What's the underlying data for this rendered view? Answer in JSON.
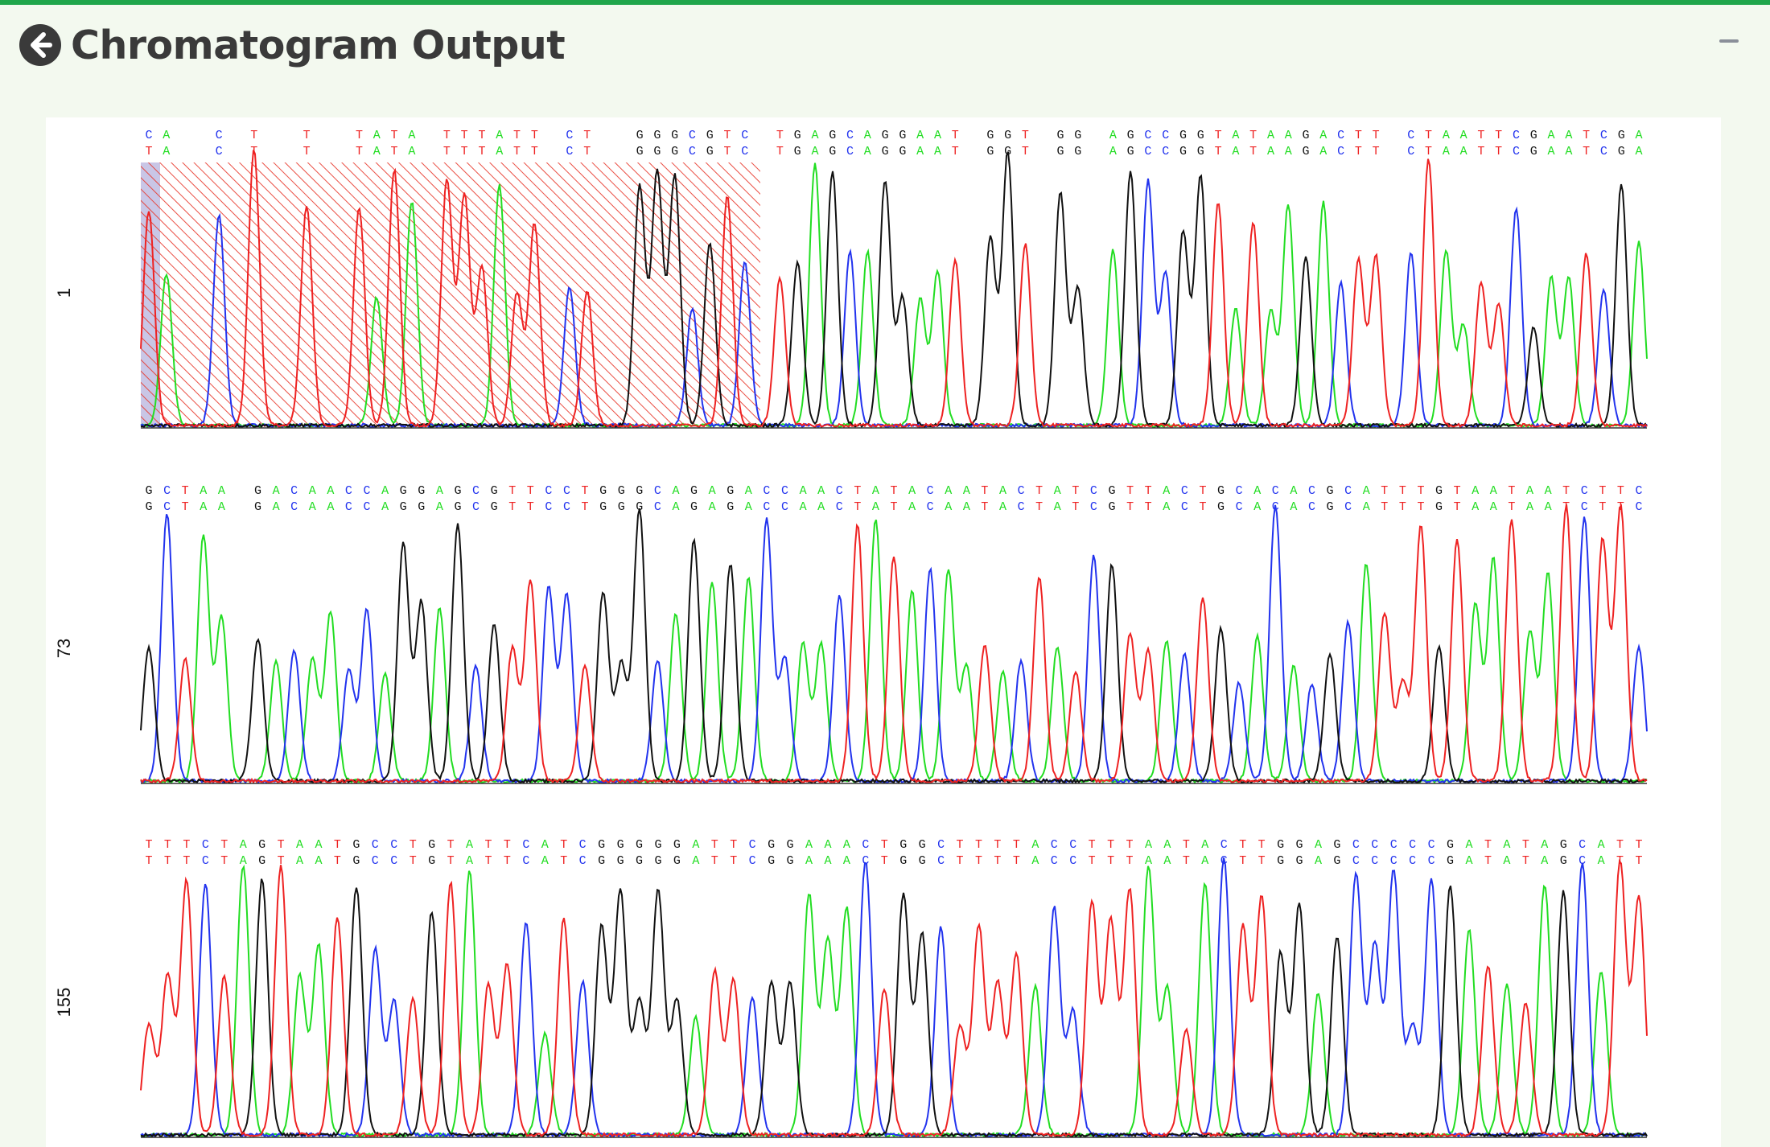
{
  "header": {
    "title": "Chromatogram Output",
    "back_icon": "arrow-left-circle-icon",
    "collapse_icon": "minus-icon"
  },
  "colors": {
    "A": "#22dd22",
    "C": "#2233ee",
    "G": "#111111",
    "T": "#ee2222",
    "trim_hatch": "#e83a2e",
    "trim_left_shade": "#c9c6e6",
    "header_bar": "#1fa64b",
    "background": "#f3f9ef"
  },
  "chart_data": {
    "type": "chromatogram",
    "rows": [
      {
        "label": "1",
        "called_sequence": "CA  C T  T  TATA TTTATT CT  GGGCGTC TGAGCAGGAAT GGT GG AGCCGGTATAAGACTT CTAATTCGAATCGA",
        "reference_sequence": "TA  C T  T  TATA TTTATT CT  GGGCGTC TGAGCAGGAAT GGT GG AGCCGGTATAAGACTT CTAATTCGAATCGA",
        "trimmed_region": "low-quality start (hatched)"
      },
      {
        "label": "73",
        "called_sequence": "GCTAA GACAACCAGGAGCGTTCCTGGGCAGAGACCAACTATACAATACTATCGTTACTGCACACGCATTTGTAATAATCTTC",
        "reference_sequence": "GCTAA GACAACCAGGAGCGTTCCTGGGCAGAGACCAACTATACAATACTATCGTTACTGCACACGCATTTGTAATAATCTTC"
      },
      {
        "label": "155",
        "called_sequence": "TTTCTAGTAATGCCTGTATTCATCGGGGGATTCGGAAACTGGCTTTTACCTTTAATACTTGGAGCCCCCGATATAGCATT",
        "reference_sequence": "TTTCTAGTAATGCCTGTATTCATCGGGGGATTCGGAAACTGGCTTTTACCTTTAATACTTGGAGCCCCCGATATAGCATT"
      }
    ]
  }
}
